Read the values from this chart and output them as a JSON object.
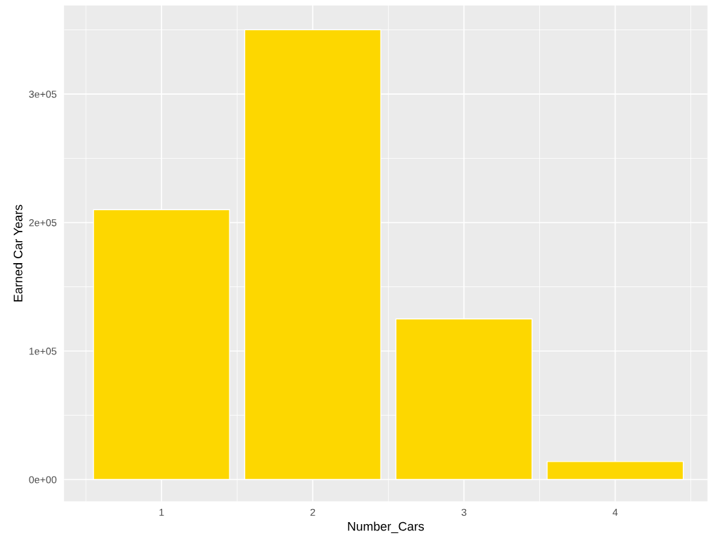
{
  "chart_data": {
    "type": "bar",
    "xlabel": "Number_Cars",
    "ylabel": "Earned Car Years",
    "categories": [
      "1",
      "2",
      "3",
      "4"
    ],
    "values": [
      210000,
      350000,
      125000,
      14000
    ],
    "color": "#fdd700",
    "ylim": [
      -17000,
      369000
    ],
    "yticks": [
      {
        "value": 0,
        "label": "0e+00"
      },
      {
        "value": 100000,
        "label": "1e+05"
      },
      {
        "value": 200000,
        "label": "2e+05"
      },
      {
        "value": 300000,
        "label": "3e+05"
      }
    ],
    "grid": true
  }
}
